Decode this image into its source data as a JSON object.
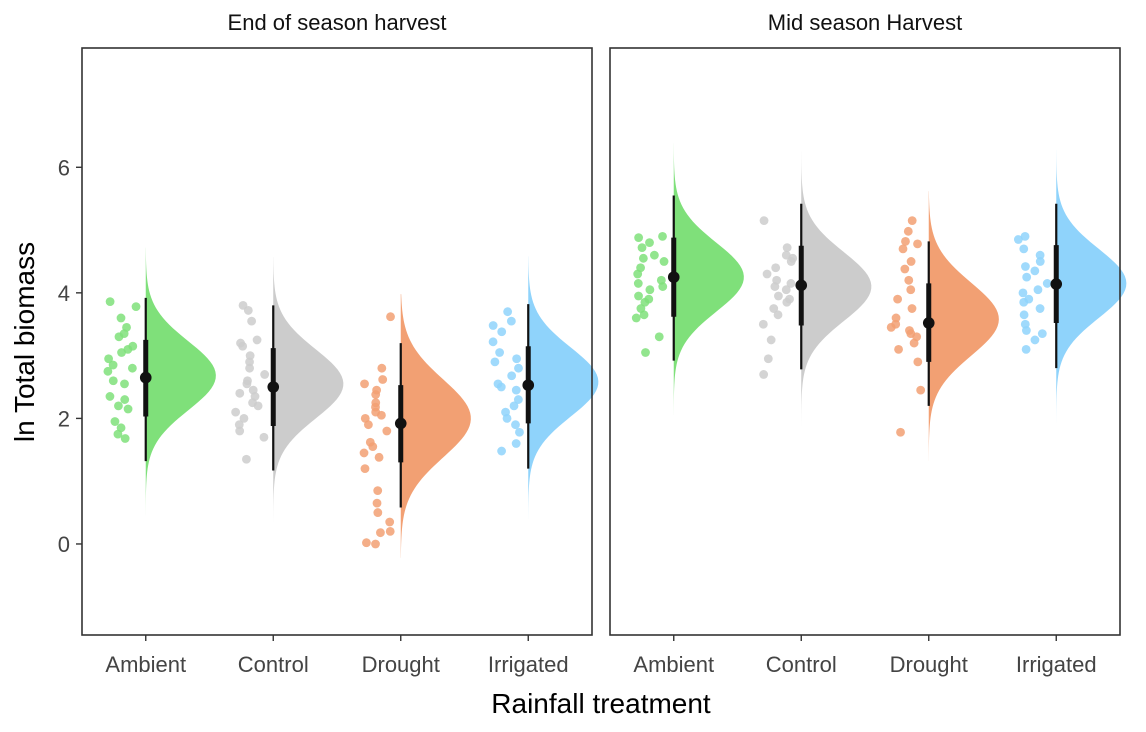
{
  "chart_data": {
    "type": "raincloud",
    "xlabel": "Rainfall treatment",
    "ylabel": "ln Total biomass",
    "ylim": [
      -1.45,
      7.9
    ],
    "yticks": [
      0,
      2,
      4,
      6
    ],
    "categories": [
      "Ambient",
      "Control",
      "Drought",
      "Irrigated"
    ],
    "colors": {
      "Ambient": "#7fe07a",
      "Control": "#cccccc",
      "Drought": "#f2a073",
      "Irrigated": "#8fd3fb"
    },
    "density_scale": 0.55,
    "panels": [
      {
        "title": "End of season harvest",
        "groups": [
          {
            "category": "Ambient",
            "mean": 2.65,
            "inner": [
              2.03,
              3.25
            ],
            "outer": [
              1.32,
              3.92
            ],
            "density": {
              "peak": 2.68,
              "sd": 0.55,
              "range": [
                0.45,
                4.72
              ]
            },
            "points": [
              3.86,
              3.78,
              3.6,
              3.45,
              3.35,
              3.3,
              3.15,
              3.1,
              3.05,
              2.95,
              2.85,
              2.8,
              2.75,
              2.6,
              2.55,
              2.35,
              2.3,
              2.2,
              2.15,
              1.95,
              1.85,
              1.75,
              1.68
            ]
          },
          {
            "category": "Control",
            "mean": 2.5,
            "inner": [
              1.88,
              3.12
            ],
            "outer": [
              1.17,
              3.8
            ],
            "density": {
              "peak": 2.55,
              "sd": 0.55,
              "range": [
                0.35,
                4.57
              ]
            },
            "points": [
              3.8,
              3.72,
              3.55,
              3.25,
              3.2,
              3.15,
              3.0,
              2.9,
              2.8,
              2.7,
              2.6,
              2.55,
              2.45,
              2.4,
              2.35,
              2.25,
              2.2,
              2.1,
              2.0,
              1.9,
              1.8,
              1.7,
              1.35
            ]
          },
          {
            "category": "Drought",
            "mean": 1.92,
            "inner": [
              1.3,
              2.53
            ],
            "outer": [
              0.58,
              3.2
            ],
            "density": {
              "peak": 2.0,
              "sd": 0.62,
              "range": [
                -0.22,
                3.98
              ]
            },
            "points": [
              3.62,
              2.8,
              2.62,
              2.55,
              2.45,
              2.38,
              2.25,
              2.18,
              2.1,
              2.05,
              2.0,
              1.9,
              1.8,
              1.62,
              1.55,
              1.45,
              1.38,
              1.2,
              0.85,
              0.65,
              0.5,
              0.35,
              0.2,
              0.18,
              0.02,
              0.0
            ]
          },
          {
            "category": "Irrigated",
            "mean": 2.53,
            "inner": [
              1.92,
              3.15
            ],
            "outer": [
              1.2,
              3.82
            ],
            "density": {
              "peak": 2.58,
              "sd": 0.55,
              "range": [
                0.4,
                4.58
              ]
            },
            "points": [
              3.7,
              3.55,
              3.48,
              3.38,
              3.22,
              3.05,
              2.95,
              2.9,
              2.8,
              2.68,
              2.55,
              2.5,
              2.45,
              2.3,
              2.2,
              2.1,
              2.0,
              1.9,
              1.78,
              1.6,
              1.48
            ]
          }
        ]
      },
      {
        "title": "Mid season Harvest",
        "groups": [
          {
            "category": "Ambient",
            "mean": 4.25,
            "inner": [
              3.62,
              4.88
            ],
            "outer": [
              2.92,
              5.55
            ],
            "density": {
              "peak": 4.25,
              "sd": 0.55,
              "range": [
                2.05,
                6.38
              ]
            },
            "points": [
              4.9,
              4.88,
              4.8,
              4.72,
              4.6,
              4.55,
              4.5,
              4.4,
              4.3,
              4.2,
              4.15,
              4.1,
              4.05,
              3.95,
              3.9,
              3.85,
              3.75,
              3.65,
              3.6,
              3.3,
              3.05
            ]
          },
          {
            "category": "Control",
            "mean": 4.12,
            "inner": [
              3.48,
              4.75
            ],
            "outer": [
              2.78,
              5.42
            ],
            "density": {
              "peak": 4.1,
              "sd": 0.55,
              "range": [
                1.88,
                6.25
              ]
            },
            "points": [
              5.15,
              4.72,
              4.6,
              4.55,
              4.5,
              4.4,
              4.3,
              4.2,
              4.15,
              4.1,
              4.05,
              3.95,
              3.9,
              3.85,
              3.75,
              3.65,
              3.5,
              3.25,
              2.95,
              2.7
            ]
          },
          {
            "category": "Drought",
            "mean": 3.52,
            "inner": [
              2.9,
              4.15
            ],
            "outer": [
              2.2,
              4.82
            ],
            "density": {
              "peak": 3.58,
              "sd": 0.58,
              "range": [
                1.32,
                5.62
              ]
            },
            "points": [
              5.15,
              4.98,
              4.82,
              4.78,
              4.7,
              4.5,
              4.38,
              4.2,
              4.05,
              3.9,
              3.75,
              3.6,
              3.5,
              3.45,
              3.4,
              3.35,
              3.3,
              3.2,
              3.1,
              2.9,
              2.45,
              1.78
            ]
          },
          {
            "category": "Irrigated",
            "mean": 4.14,
            "inner": [
              3.52,
              4.76
            ],
            "outer": [
              2.8,
              5.42
            ],
            "density": {
              "peak": 4.15,
              "sd": 0.55,
              "range": [
                1.92,
                6.28
              ]
            },
            "points": [
              4.9,
              4.85,
              4.7,
              4.6,
              4.5,
              4.42,
              4.35,
              4.25,
              4.15,
              4.05,
              4.0,
              3.9,
              3.85,
              3.75,
              3.65,
              3.5,
              3.4,
              3.35,
              3.25,
              3.1
            ]
          }
        ]
      }
    ]
  }
}
